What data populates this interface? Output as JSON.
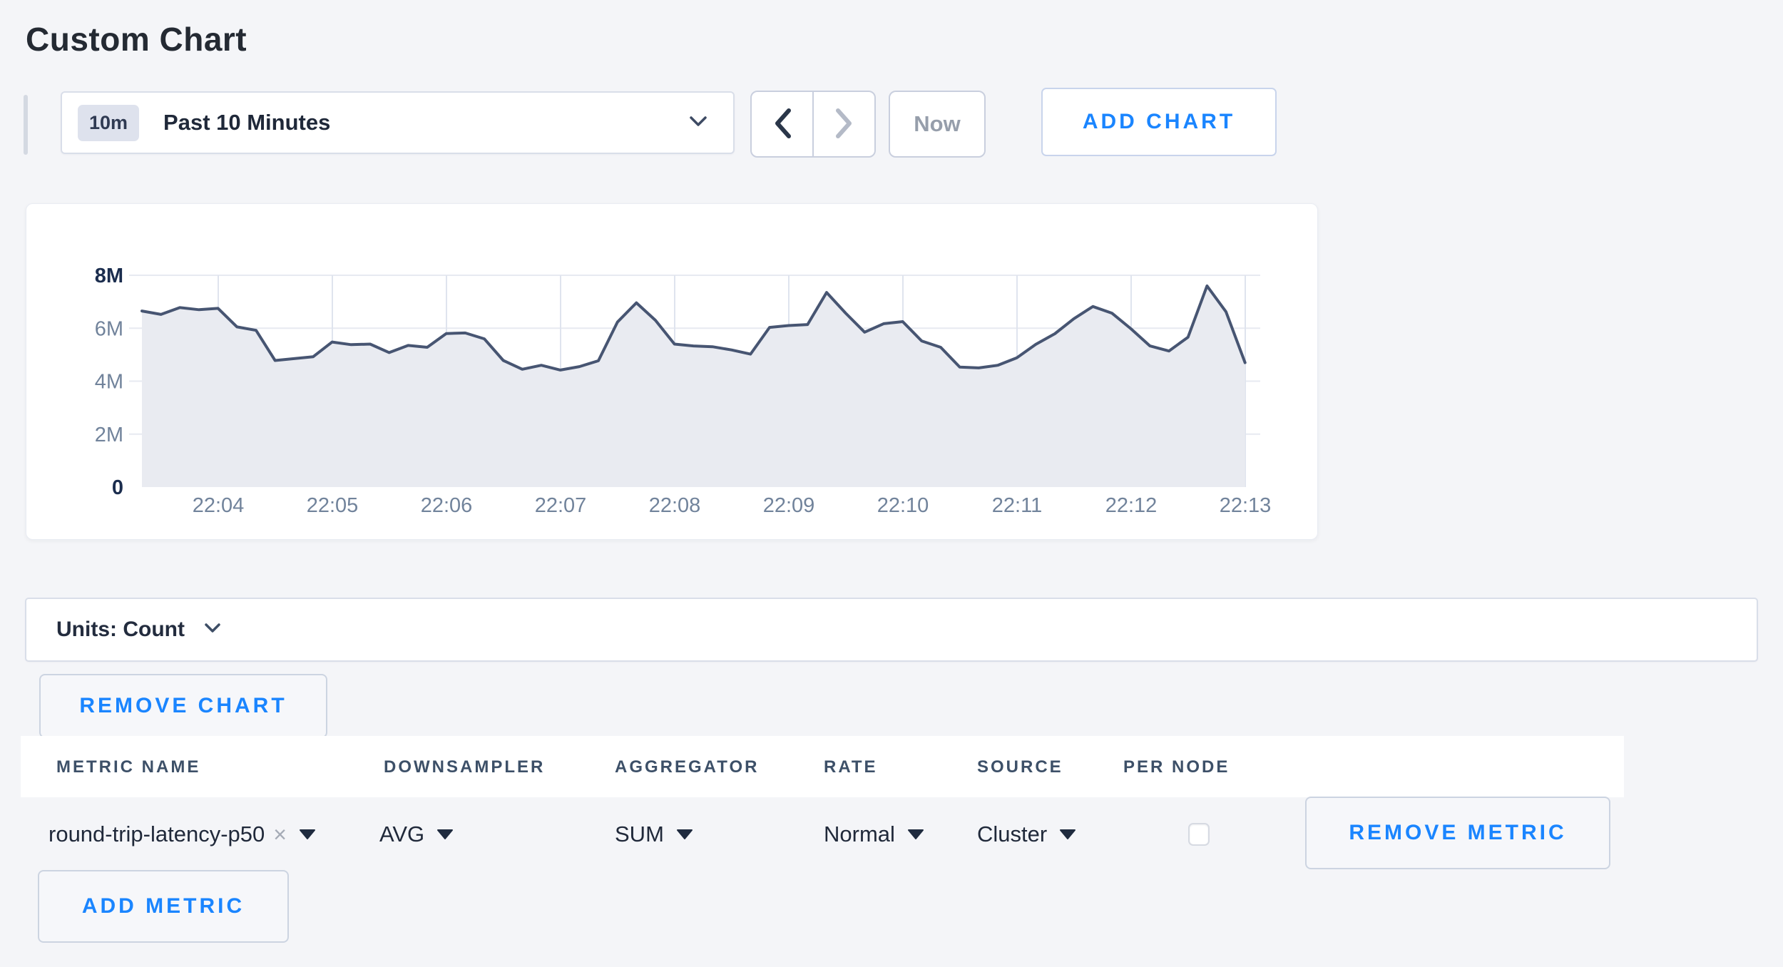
{
  "page": {
    "title": "Custom Chart"
  },
  "toolbar": {
    "time_badge": "10m",
    "time_label": "Past 10 Minutes",
    "now_label": "Now",
    "add_chart_label": "ADD CHART"
  },
  "chart_data": {
    "type": "area",
    "title": "",
    "xlabel": "",
    "ylabel": "",
    "ylim": [
      0,
      8000000
    ],
    "grid": true,
    "legend": "none",
    "y_ticks": [
      "0",
      "2M",
      "4M",
      "6M",
      "8M"
    ],
    "x_ticks": [
      "22:04",
      "22:05",
      "22:06",
      "22:07",
      "22:08",
      "22:09",
      "22:10",
      "22:11",
      "22:12",
      "22:13"
    ],
    "x": [
      "22:03:20",
      "22:03:30",
      "22:03:40",
      "22:03:50",
      "22:04:00",
      "22:04:10",
      "22:04:20",
      "22:04:30",
      "22:04:40",
      "22:04:50",
      "22:05:00",
      "22:05:10",
      "22:05:20",
      "22:05:30",
      "22:05:40",
      "22:05:50",
      "22:06:00",
      "22:06:10",
      "22:06:20",
      "22:06:30",
      "22:06:40",
      "22:06:50",
      "22:07:00",
      "22:07:10",
      "22:07:20",
      "22:07:30",
      "22:07:40",
      "22:07:50",
      "22:08:00",
      "22:08:10",
      "22:08:20",
      "22:08:30",
      "22:08:40",
      "22:08:50",
      "22:09:00",
      "22:09:10",
      "22:09:20",
      "22:09:30",
      "22:09:40",
      "22:09:50",
      "22:10:00",
      "22:10:10",
      "22:10:20",
      "22:10:30",
      "22:10:40",
      "22:10:50",
      "22:11:00",
      "22:11:10",
      "22:11:20",
      "22:11:30",
      "22:11:40",
      "22:11:50",
      "22:12:00",
      "22:12:10",
      "22:12:20",
      "22:12:30",
      "22:12:40",
      "22:12:50",
      "22:13:00"
    ],
    "series": [
      {
        "name": "round-trip-latency-p50",
        "values_millions": [
          6.65,
          6.52,
          6.78,
          6.7,
          6.75,
          6.05,
          5.92,
          4.78,
          4.85,
          4.92,
          5.48,
          5.38,
          5.4,
          5.08,
          5.35,
          5.28,
          5.8,
          5.82,
          5.6,
          4.78,
          4.45,
          4.6,
          4.42,
          4.55,
          4.77,
          6.23,
          6.96,
          6.3,
          5.4,
          5.33,
          5.3,
          5.18,
          5.02,
          6.03,
          6.1,
          6.14,
          7.35,
          6.57,
          5.85,
          6.17,
          6.25,
          5.52,
          5.28,
          4.53,
          4.5,
          4.6,
          4.88,
          5.39,
          5.79,
          6.36,
          6.82,
          6.57,
          5.98,
          5.33,
          5.14,
          5.66,
          7.6,
          6.62,
          4.7
        ]
      }
    ]
  },
  "units_bar": {
    "label": "Units: Count"
  },
  "actions": {
    "remove_chart_label": "REMOVE CHART"
  },
  "metrics_table": {
    "headers": [
      "METRIC NAME",
      "DOWNSAMPLER",
      "AGGREGATOR",
      "RATE",
      "SOURCE",
      "PER NODE"
    ],
    "rows": [
      {
        "metric_name": "round-trip-latency-p50",
        "downsampler": "AVG",
        "aggregator": "SUM",
        "rate": "Normal",
        "source": "Cluster",
        "per_node_checked": false
      }
    ],
    "remove_metric_label": "REMOVE METRIC",
    "add_metric_label": "ADD METRIC"
  },
  "colors": {
    "accent_blue": "#1a85ff",
    "line": "#475572",
    "area_fill": "#e9ebf1",
    "grid_vertical": "#dfe4ee",
    "grid_horizontal": "#e7eaf1",
    "tick_label": "#71839b",
    "tick_label_strong": "#1b2d4e",
    "page_background": "#f4f5f8"
  }
}
